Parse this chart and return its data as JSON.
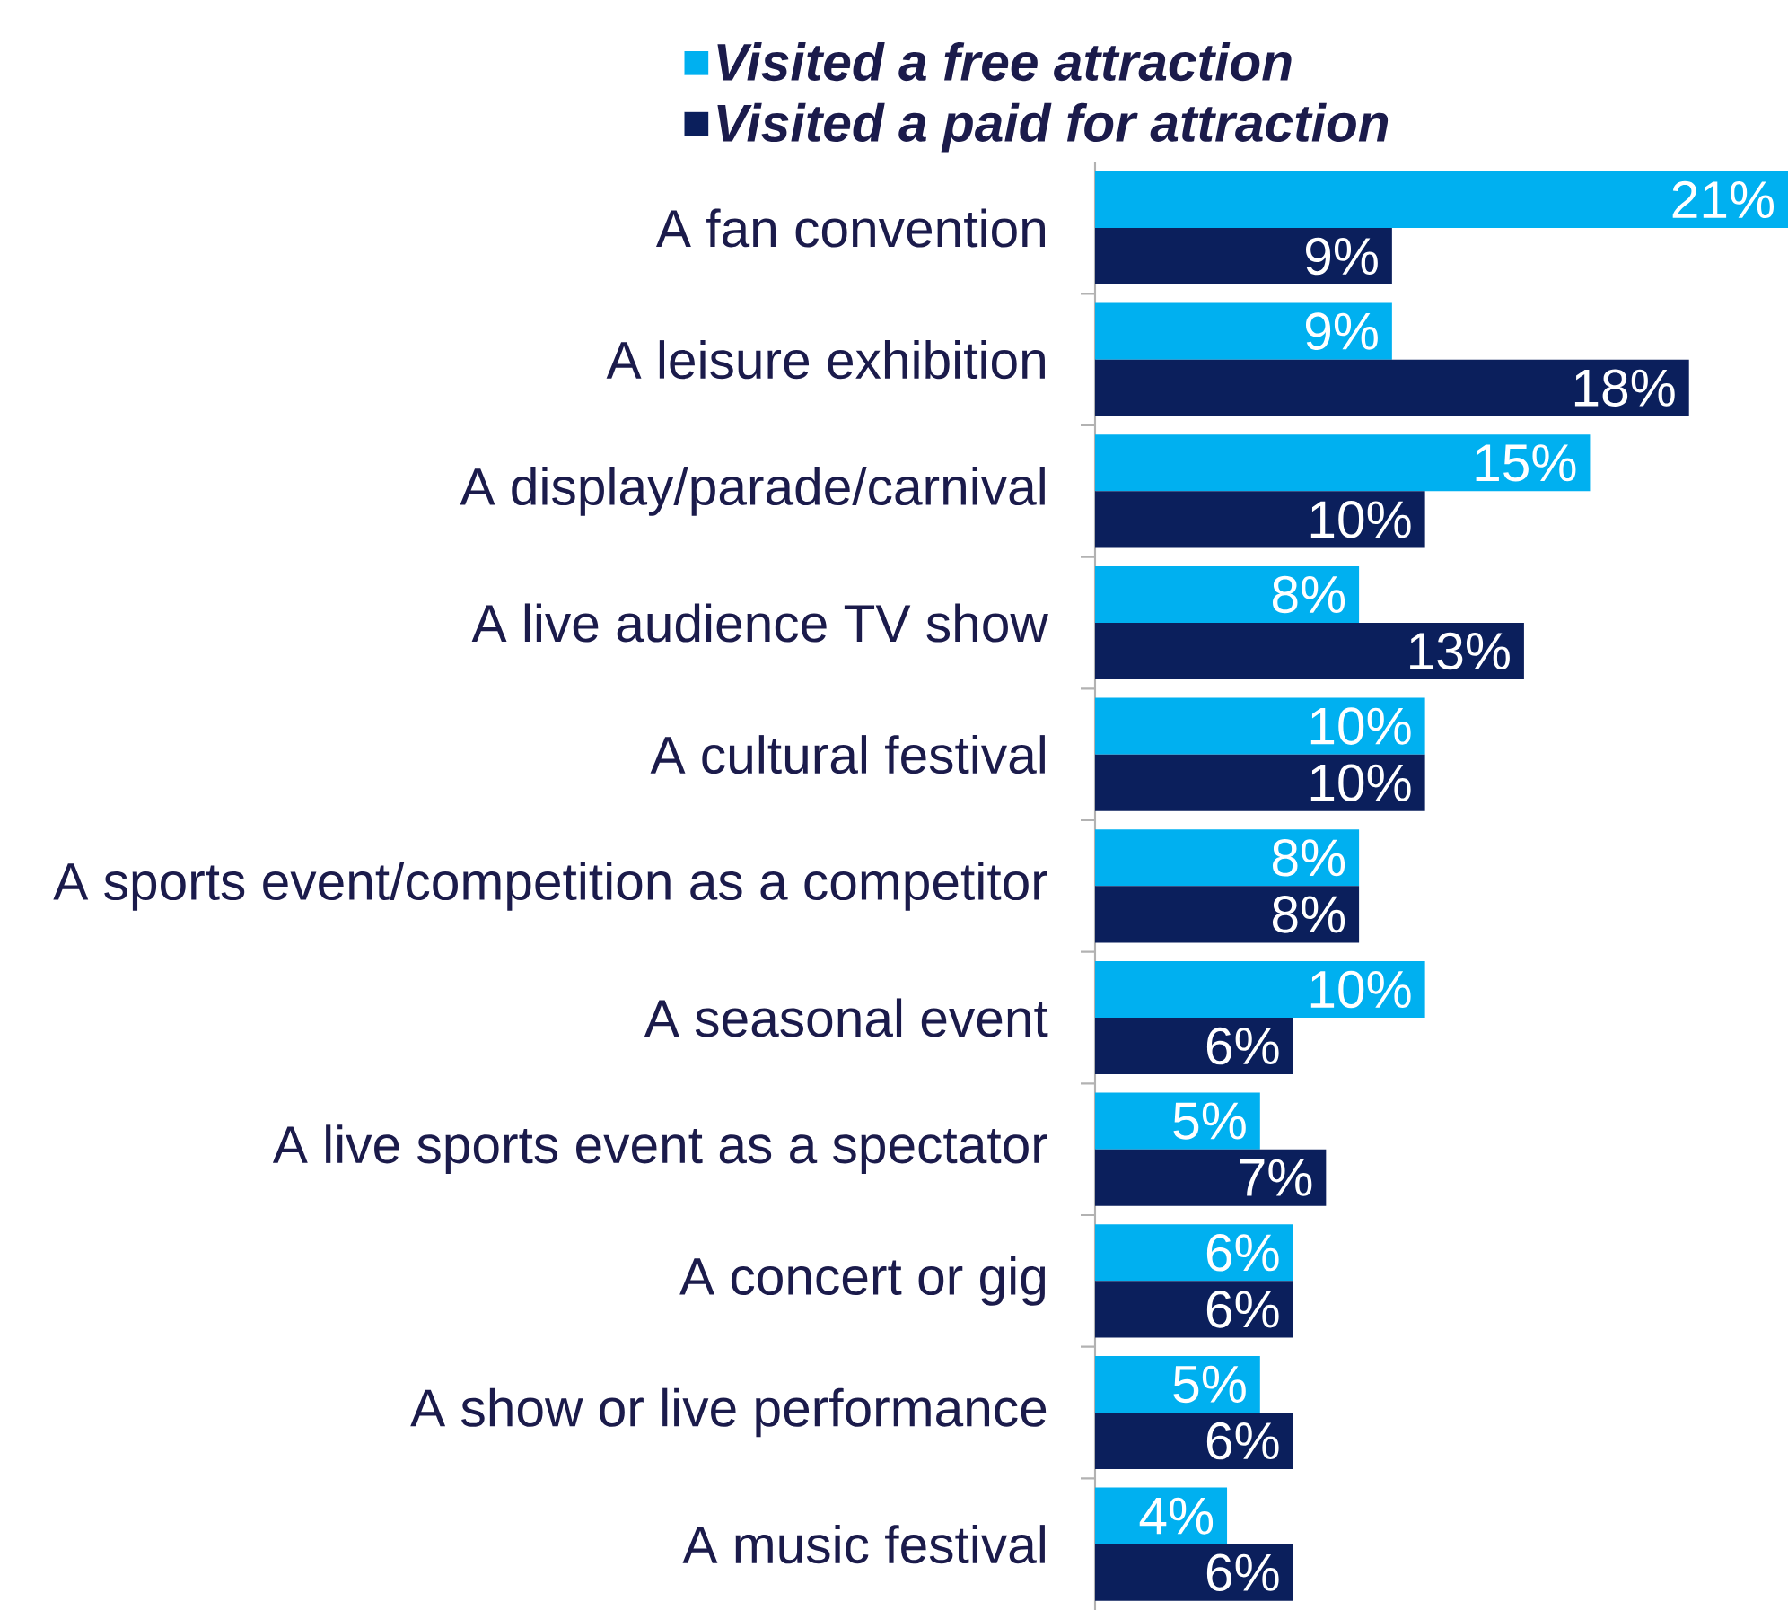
{
  "chart_data": {
    "type": "bar",
    "orientation": "horizontal",
    "legend": "top",
    "categories": [
      "A fan convention",
      "A leisure exhibition",
      "A display/parade/carnival",
      "A live audience TV show",
      "A cultural festival",
      "A sports event/competition as a competitor",
      "A seasonal event",
      "A live sports event as a spectator",
      "A concert or gig",
      "A show or live performance",
      "A music festival"
    ],
    "series": [
      {
        "name": "Visited a free attraction",
        "color": "#00b0f0",
        "values": [
          21,
          9,
          15,
          8,
          10,
          8,
          10,
          5,
          6,
          5,
          4
        ],
        "value_labels": [
          "21%",
          "9%",
          "15%",
          "8%",
          "10%",
          "8%",
          "10%",
          "5%",
          "6%",
          "5%",
          "4%"
        ]
      },
      {
        "name": "Visited a paid for attraction",
        "color": "#0b1f5c",
        "values": [
          9,
          18,
          10,
          13,
          10,
          8,
          6,
          7,
          6,
          6,
          6
        ],
        "value_labels": [
          "9%",
          "18%",
          "10%",
          "13%",
          "10%",
          "8%",
          "6%",
          "7%",
          "6%",
          "6%",
          "6%"
        ]
      }
    ]
  }
}
